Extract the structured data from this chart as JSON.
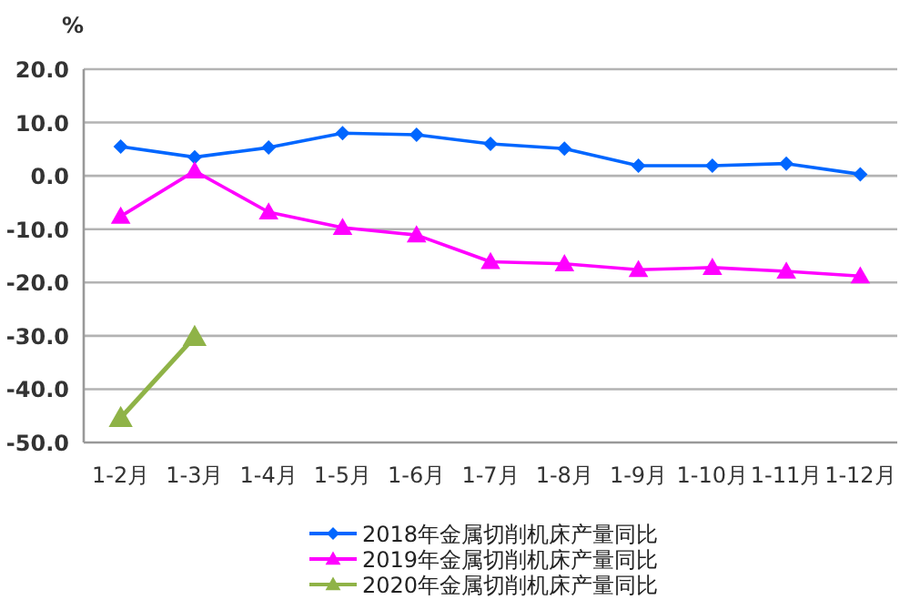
{
  "chart_data": {
    "type": "line",
    "ylabel": "%",
    "categories": [
      "1-2月",
      "1-3月",
      "1-4月",
      "1-5月",
      "1-6月",
      "1-7月",
      "1-8月",
      "1-9月",
      "1-10月",
      "1-11月",
      "1-12月"
    ],
    "series": [
      {
        "name": "2018年金属切削机床产量同比",
        "color": "#0066ff",
        "marker": "diamond",
        "values": [
          5.5,
          3.5,
          5.3,
          8.0,
          7.7,
          6.0,
          5.1,
          1.9,
          1.9,
          2.3,
          0.3
        ]
      },
      {
        "name": "2019年金属切削机床产量同比",
        "color": "#ff00ff",
        "marker": "triangle",
        "values": [
          -7.6,
          0.9,
          -6.8,
          -9.7,
          -11.1,
          -16.1,
          -16.5,
          -17.6,
          -17.2,
          -17.9,
          -18.8
        ]
      },
      {
        "name": "2020年金属切削机床产量同比",
        "color": "#8fb347",
        "marker": "triangle",
        "values": [
          -45.4,
          -30.2,
          null,
          null,
          null,
          null,
          null,
          null,
          null,
          null,
          null
        ]
      }
    ],
    "ylim": [
      -50,
      20
    ],
    "yticks": [
      {
        "value": -50,
        "label": "-50.0"
      },
      {
        "value": -40,
        "label": "-40.0"
      },
      {
        "value": -30,
        "label": "-30.0"
      },
      {
        "value": -20,
        "label": "-20.0"
      },
      {
        "value": -10,
        "label": "-10.0"
      },
      {
        "value": 0,
        "label": "0.0"
      },
      {
        "value": 10,
        "label": "10.0"
      },
      {
        "value": 20,
        "label": "20.0"
      }
    ],
    "grid": "y",
    "legend": "bottom",
    "line_style": "solid"
  }
}
